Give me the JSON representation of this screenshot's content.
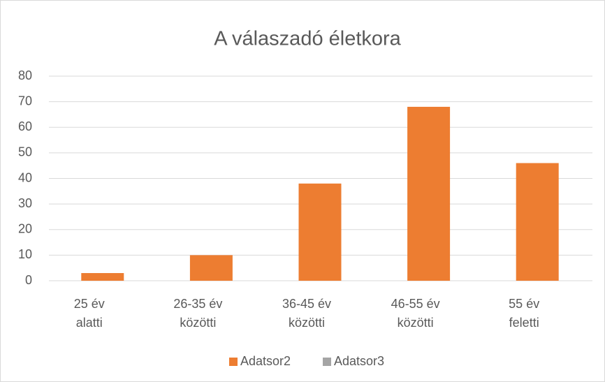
{
  "chart_data": {
    "type": "bar",
    "title": "A válaszadó életkora",
    "categories": [
      "25 év alatti",
      "26-35 év közötti",
      "36-45 év közötti",
      "46-55 év közötti",
      "55 év feletti"
    ],
    "series": [
      {
        "name": "Adatsor2",
        "color": "#ed7d31",
        "values": [
          3,
          10,
          38,
          68,
          46
        ]
      },
      {
        "name": "Adatsor3",
        "color": "#a5a5a5",
        "values": [
          null,
          null,
          null,
          null,
          null
        ]
      }
    ],
    "ylim": [
      0,
      80
    ],
    "yticks": [
      0,
      10,
      20,
      30,
      40,
      50,
      60,
      70,
      80
    ],
    "grid": true,
    "legend": "bottom"
  }
}
